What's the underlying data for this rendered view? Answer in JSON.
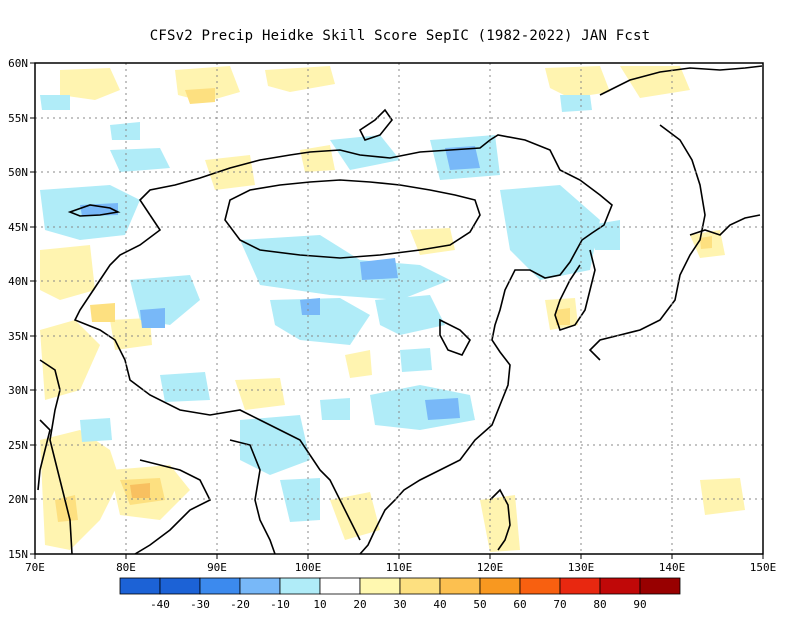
{
  "title": "CFSv2 Precip Heidke Skill Score SepIC (1982-2022) JAN Fcst",
  "map": {
    "lon_range": [
      70,
      150
    ],
    "lat_range": [
      15,
      60
    ],
    "lon_ticks": [
      "70E",
      "80E",
      "90E",
      "100E",
      "110E",
      "120E",
      "130E",
      "140E",
      "150E"
    ],
    "lat_ticks": [
      "15N",
      "20N",
      "25N",
      "30N",
      "35N",
      "40N",
      "45N",
      "50N",
      "55N",
      "60N"
    ]
  },
  "colorbar": {
    "labels": [
      "-40",
      "-30",
      "-20",
      "-10",
      "10",
      "20",
      "30",
      "40",
      "50",
      "60",
      "70",
      "80",
      "90"
    ],
    "colors": [
      "#1c62d6",
      "#3c8aee",
      "#78b8f8",
      "#b0ecf8",
      "#ffffff",
      "#fff8b0",
      "#fde080",
      "#fcc050",
      "#f89820",
      "#f86010",
      "#e82810",
      "#c00808",
      "#980000"
    ]
  }
}
